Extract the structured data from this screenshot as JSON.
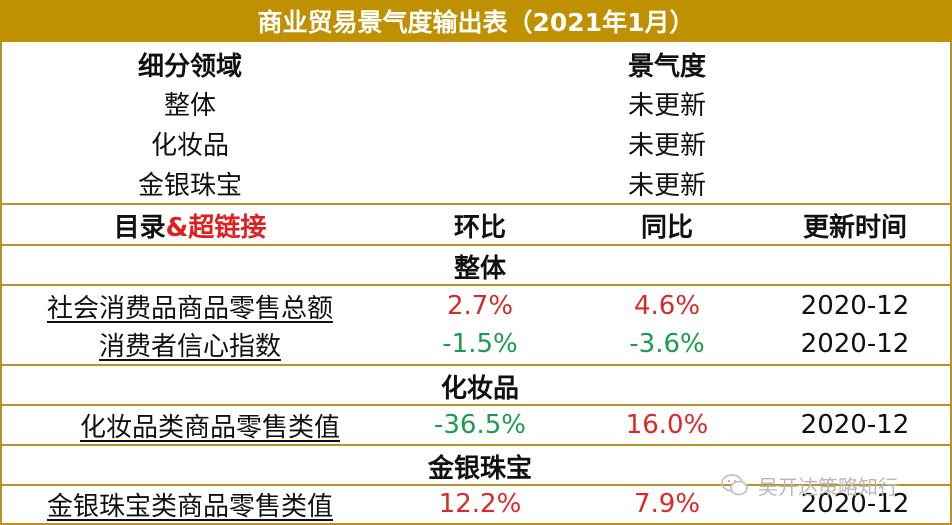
{
  "title": "商业贸易景气度输出表（2021年1月）",
  "top_table": {
    "headers": {
      "segment": "细分领域",
      "sentiment": "景气度"
    },
    "rows": [
      {
        "segment": "整体",
        "sentiment": "未更新"
      },
      {
        "segment": "化妆品",
        "sentiment": "未更新"
      },
      {
        "segment": "金银珠宝",
        "sentiment": "未更新"
      }
    ]
  },
  "detail_table": {
    "headers": {
      "catalog_prefix": "目录",
      "catalog_suffix": "&超链接",
      "mom": "环比",
      "yoy": "同比",
      "updated": "更新时间"
    },
    "sections": [
      {
        "name": "整体",
        "rows": [
          {
            "indicator": "社会消费品商品零售总额",
            "mom": "2.7%",
            "yoy": "4.6%",
            "updated": "2020-12"
          },
          {
            "indicator": "消费者信心指数",
            "mom": "-1.5%",
            "yoy": "-3.6%",
            "updated": "2020-12"
          }
        ]
      },
      {
        "name": "化妆品",
        "rows": [
          {
            "indicator": "化妆品类商品零售类值",
            "mom": "-36.5%",
            "yoy": "16.0%",
            "updated": "2020-12"
          }
        ]
      },
      {
        "name": "金银珠宝",
        "rows": [
          {
            "indicator": "金银珠宝类商品零售类值",
            "mom": "12.2%",
            "yoy": "7.9%",
            "updated": "2020-12"
          }
        ]
      }
    ]
  },
  "colors": {
    "border": "#b9922a",
    "title_bg": "#bf9000",
    "positive": "#d62b2b",
    "negative": "#1f9a4e",
    "header_accent": "#e02020"
  },
  "watermark": {
    "icon": "wechat-icon",
    "text": "吴开达策略知行"
  }
}
